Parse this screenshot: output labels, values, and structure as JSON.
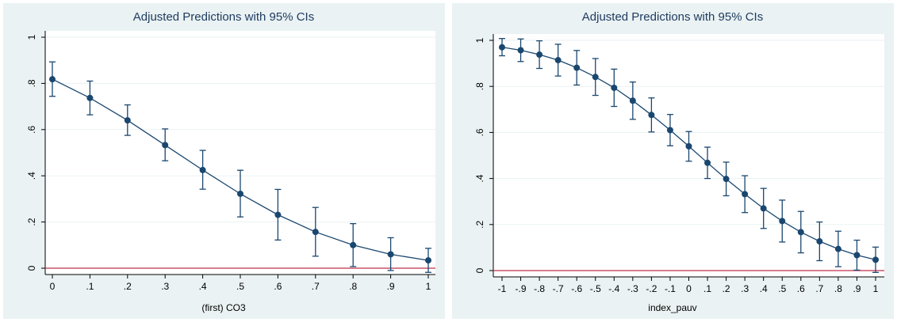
{
  "chart_data": [
    {
      "type": "line",
      "title": "Adjusted Predictions with 95% CIs",
      "xlabel": "(first) CO3",
      "ylabel": "",
      "x": [
        0,
        0.1,
        0.2,
        0.3,
        0.4,
        0.5,
        0.6,
        0.7,
        0.8,
        0.9,
        1
      ],
      "x_tick_labels": [
        "0",
        ".1",
        ".2",
        ".3",
        ".4",
        ".5",
        ".6",
        ".7",
        ".8",
        ".9",
        "1"
      ],
      "y_ticks": [
        0,
        0.2,
        0.4,
        0.6,
        0.8,
        1
      ],
      "y_tick_labels": [
        "0",
        ".2",
        ".4",
        ".6",
        ".8",
        "1"
      ],
      "xlim": [
        0,
        1
      ],
      "ylim": [
        0,
        1
      ],
      "series": [
        {
          "values": [
            0.818,
            0.737,
            0.64,
            0.533,
            0.425,
            0.322,
            0.231,
            0.157,
            0.1,
            0.06,
            0.034
          ],
          "ci_low": [
            0.744,
            0.664,
            0.575,
            0.465,
            0.342,
            0.222,
            0.122,
            0.052,
            0.007,
            -0.01,
            -0.018
          ],
          "ci_high": [
            0.893,
            0.81,
            0.707,
            0.603,
            0.51,
            0.424,
            0.341,
            0.263,
            0.193,
            0.132,
            0.086
          ]
        }
      ],
      "reference_line_y": 0,
      "grid": true,
      "colors": {
        "series": "#1a476f",
        "reference": "#c0304a",
        "background": "#eaf2f3",
        "plot": "#ffffff",
        "title": "#1e3a5f"
      }
    },
    {
      "type": "line",
      "title": "Adjusted Predictions with 95% CIs",
      "xlabel": "index_pauv",
      "ylabel": "",
      "x": [
        -1,
        -0.9,
        -0.8,
        -0.7,
        -0.6,
        -0.5,
        -0.4,
        -0.3,
        -0.2,
        -0.1,
        0,
        0.1,
        0.2,
        0.3,
        0.4,
        0.5,
        0.6,
        0.7,
        0.8,
        0.9,
        1
      ],
      "x_tick_labels": [
        "-1",
        "-.9",
        "-.8",
        "-.7",
        "-.6",
        "-.5",
        "-.4",
        "-.3",
        "-.2",
        "-.1",
        "0",
        ".1",
        ".2",
        ".3",
        ".4",
        ".5",
        ".6",
        ".7",
        ".8",
        ".9",
        "1"
      ],
      "y_ticks": [
        0,
        0.2,
        0.4,
        0.6,
        0.8,
        1
      ],
      "y_tick_labels": [
        "0",
        ".2",
        ".4",
        ".6",
        ".8",
        "1"
      ],
      "xlim": [
        -1,
        1
      ],
      "ylim": [
        0,
        1
      ],
      "series": [
        {
          "values": [
            0.97,
            0.957,
            0.938,
            0.914,
            0.881,
            0.841,
            0.794,
            0.738,
            0.676,
            0.61,
            0.54,
            0.468,
            0.398,
            0.332,
            0.27,
            0.215,
            0.167,
            0.127,
            0.094,
            0.067,
            0.047
          ],
          "ci_low": [
            0.933,
            0.908,
            0.878,
            0.845,
            0.806,
            0.761,
            0.713,
            0.657,
            0.602,
            0.542,
            0.475,
            0.4,
            0.325,
            0.252,
            0.183,
            0.124,
            0.077,
            0.043,
            0.017,
            0.002,
            -0.008
          ],
          "ci_high": [
            1.008,
            1.006,
            0.998,
            0.983,
            0.956,
            0.921,
            0.875,
            0.819,
            0.75,
            0.678,
            0.604,
            0.536,
            0.471,
            0.412,
            0.357,
            0.306,
            0.257,
            0.211,
            0.171,
            0.132,
            0.102
          ]
        }
      ],
      "reference_line_y": 0,
      "grid": true,
      "colors": {
        "series": "#1a476f",
        "reference": "#c0304a",
        "background": "#eaf2f3",
        "plot": "#ffffff",
        "title": "#1e3a5f"
      }
    }
  ]
}
